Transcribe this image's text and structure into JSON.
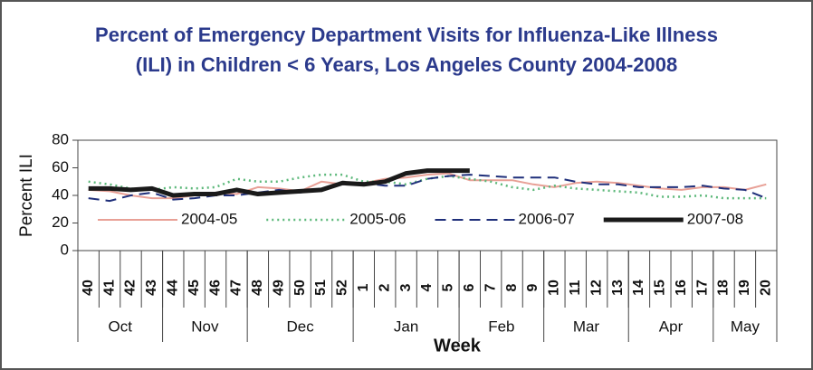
{
  "chart_data": {
    "type": "line",
    "title": "Percent of Emergency Department Visits for Influenza-Like Illness (ILI) in Children < 6 Years, Los Angeles County 2004-2008",
    "x_label": "Week",
    "y_label": "Percent ILI",
    "categories": [
      "40",
      "41",
      "42",
      "43",
      "44",
      "45",
      "46",
      "47",
      "48",
      "49",
      "50",
      "51",
      "52",
      "1",
      "2",
      "3",
      "4",
      "5",
      "6",
      "7",
      "8",
      "9",
      "10",
      "11",
      "12",
      "13",
      "14",
      "15",
      "16",
      "17",
      "18",
      "19",
      "20"
    ],
    "month_groups": [
      {
        "label": "Oct",
        "start": "40",
        "end": "43"
      },
      {
        "label": "Nov",
        "start": "44",
        "end": "47"
      },
      {
        "label": "Dec",
        "start": "48",
        "end": "52"
      },
      {
        "label": "Jan",
        "start": "1",
        "end": "5"
      },
      {
        "label": "Feb",
        "start": "6",
        "end": "9"
      },
      {
        "label": "Mar",
        "start": "10",
        "end": "13"
      },
      {
        "label": "Apr",
        "start": "14",
        "end": "17"
      },
      {
        "label": "May",
        "start": "18",
        "end": "20"
      }
    ],
    "series": [
      {
        "name": "2004-05",
        "color": "#e8a096",
        "dash": "solid",
        "line_width": 2,
        "values": [
          44,
          43,
          40,
          38,
          38,
          40,
          42,
          41,
          46,
          45,
          43,
          50,
          48,
          49,
          52,
          53,
          55,
          56,
          51,
          51,
          51,
          48,
          46,
          49,
          50,
          49,
          47,
          45,
          44,
          46,
          46,
          44,
          48
        ]
      },
      {
        "name": "2005-06",
        "color": "#5cb87a",
        "dash": "dotted",
        "line_width": 2.5,
        "values": [
          50,
          48,
          45,
          44,
          46,
          45,
          46,
          52,
          50,
          50,
          53,
          55,
          55,
          50,
          50,
          48,
          52,
          54,
          52,
          50,
          46,
          44,
          47,
          45,
          44,
          43,
          42,
          39,
          39,
          40,
          38,
          38,
          38
        ]
      },
      {
        "name": "2006-07",
        "color": "#1f2f7a",
        "dash": "dashed",
        "line_width": 2,
        "values": [
          38,
          36,
          40,
          42,
          37,
          38,
          40,
          40,
          42,
          44,
          42,
          45,
          48,
          49,
          47,
          47,
          52,
          54,
          55,
          54,
          53,
          53,
          53,
          50,
          48,
          48,
          46,
          46,
          46,
          47,
          45,
          44,
          38
        ]
      },
      {
        "name": "2007-08",
        "color": "#1a1a1a",
        "dash": "solid",
        "line_width": 5,
        "values": [
          45,
          45,
          44,
          45,
          40,
          41,
          41,
          44,
          41,
          42,
          43,
          44,
          49,
          48,
          50,
          56,
          58,
          58,
          58,
          null,
          null,
          null,
          null,
          null,
          null,
          null,
          null,
          null,
          null,
          null,
          null,
          null,
          null
        ]
      }
    ],
    "ylim": [
      0,
      80
    ],
    "yticks": [
      0,
      20,
      40,
      60,
      80
    ],
    "grid": false,
    "legend": "lower center"
  }
}
